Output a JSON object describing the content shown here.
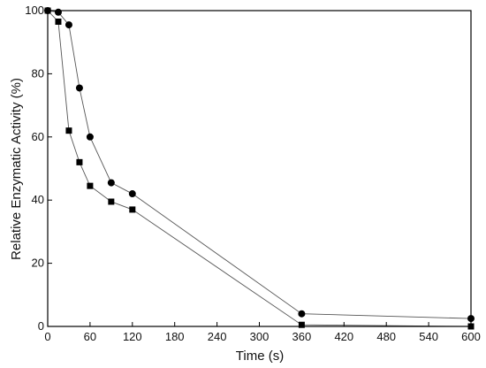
{
  "chart_data": {
    "type": "line",
    "title": "",
    "xlabel": "Time (s)",
    "ylabel": "Relative Enzymatic Activity (%)",
    "xlim": [
      0,
      600
    ],
    "ylim": [
      0,
      100
    ],
    "xticks": [
      0,
      60,
      120,
      180,
      240,
      300,
      360,
      420,
      480,
      540,
      600
    ],
    "yticks": [
      0,
      20,
      40,
      60,
      80,
      100
    ],
    "grid": false,
    "legend": "none",
    "series": [
      {
        "marker": "circle",
        "color": "#000000",
        "x": [
          0,
          15,
          30,
          45,
          60,
          90,
          120,
          360,
          600
        ],
        "y": [
          100,
          99.5,
          95.5,
          75.5,
          60,
          45.5,
          42,
          4,
          2.5
        ]
      },
      {
        "marker": "square",
        "color": "#000000",
        "x": [
          0,
          15,
          30,
          45,
          60,
          90,
          120,
          360,
          600
        ],
        "y": [
          100,
          96.5,
          62,
          52,
          44.5,
          39.5,
          37,
          0.5,
          0
        ]
      }
    ]
  }
}
